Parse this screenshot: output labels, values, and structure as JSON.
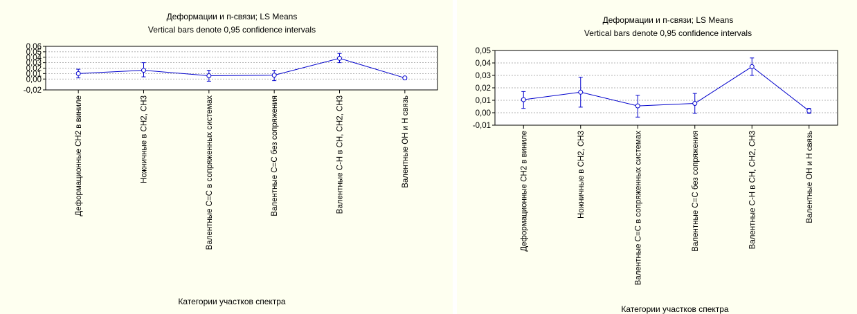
{
  "chart_data": [
    {
      "type": "line",
      "title": "Деформации и п-связи; LS Means",
      "subtitle": "Vertical bars denote 0,95 confidence intervals",
      "xlabel": "Категории участков спектра",
      "ylabel": "",
      "categories": [
        "Деформационные СН2 в виниле",
        "Ножничные в СН2, СН3",
        "Валентные С=С в сопряженных системах",
        "Валентные С=С без сопряжения",
        "Валентные С-Н в СН, СН2, СН3",
        "Валентные ОН и Н связь"
      ],
      "values": [
        0.01,
        0.016,
        0.006,
        0.007,
        0.038,
        0.002
      ],
      "ci_lower": [
        0.002,
        0.004,
        -0.004,
        -0.003,
        0.03,
        -0.001
      ],
      "ci_upper": [
        0.018,
        0.03,
        0.016,
        0.016,
        0.047,
        0.004
      ],
      "ylim": [
        -0.02,
        0.06
      ],
      "yticks": [
        "-0,02",
        "0,00",
        "0,01",
        "0,02",
        "0,03",
        "0,04",
        "0,05",
        "0,06"
      ],
      "grid": true,
      "color": "#0000cc"
    },
    {
      "type": "line",
      "title": "Деформации и п-связи; LS Means",
      "subtitle": "Vertical bars denote 0,95 confidence intervals",
      "xlabel": "Категории участков спектра",
      "ylabel": "",
      "categories": [
        "Деформационные СН2 в виниле",
        "Ножничные в СН2, СН3",
        "Валентные С=С в сопряженных системах",
        "Валентные С=С без сопряжения",
        "Валентные С-Н в СН, СН2, СН3",
        "Валентные ОН и Н связь"
      ],
      "values": [
        0.0105,
        0.0165,
        0.0055,
        0.0075,
        0.037,
        0.0015
      ],
      "ci_lower": [
        0.0035,
        0.0045,
        -0.0035,
        -0.0005,
        0.03,
        -0.0005
      ],
      "ci_upper": [
        0.017,
        0.0285,
        0.014,
        0.0155,
        0.044,
        0.0035
      ],
      "ylim": [
        -0.01,
        0.05
      ],
      "yticks": [
        "-0,01",
        "0,00",
        "0,01",
        "0,02",
        "0,03",
        "0,04",
        "0,05"
      ],
      "grid": true,
      "color": "#0000cc"
    }
  ]
}
